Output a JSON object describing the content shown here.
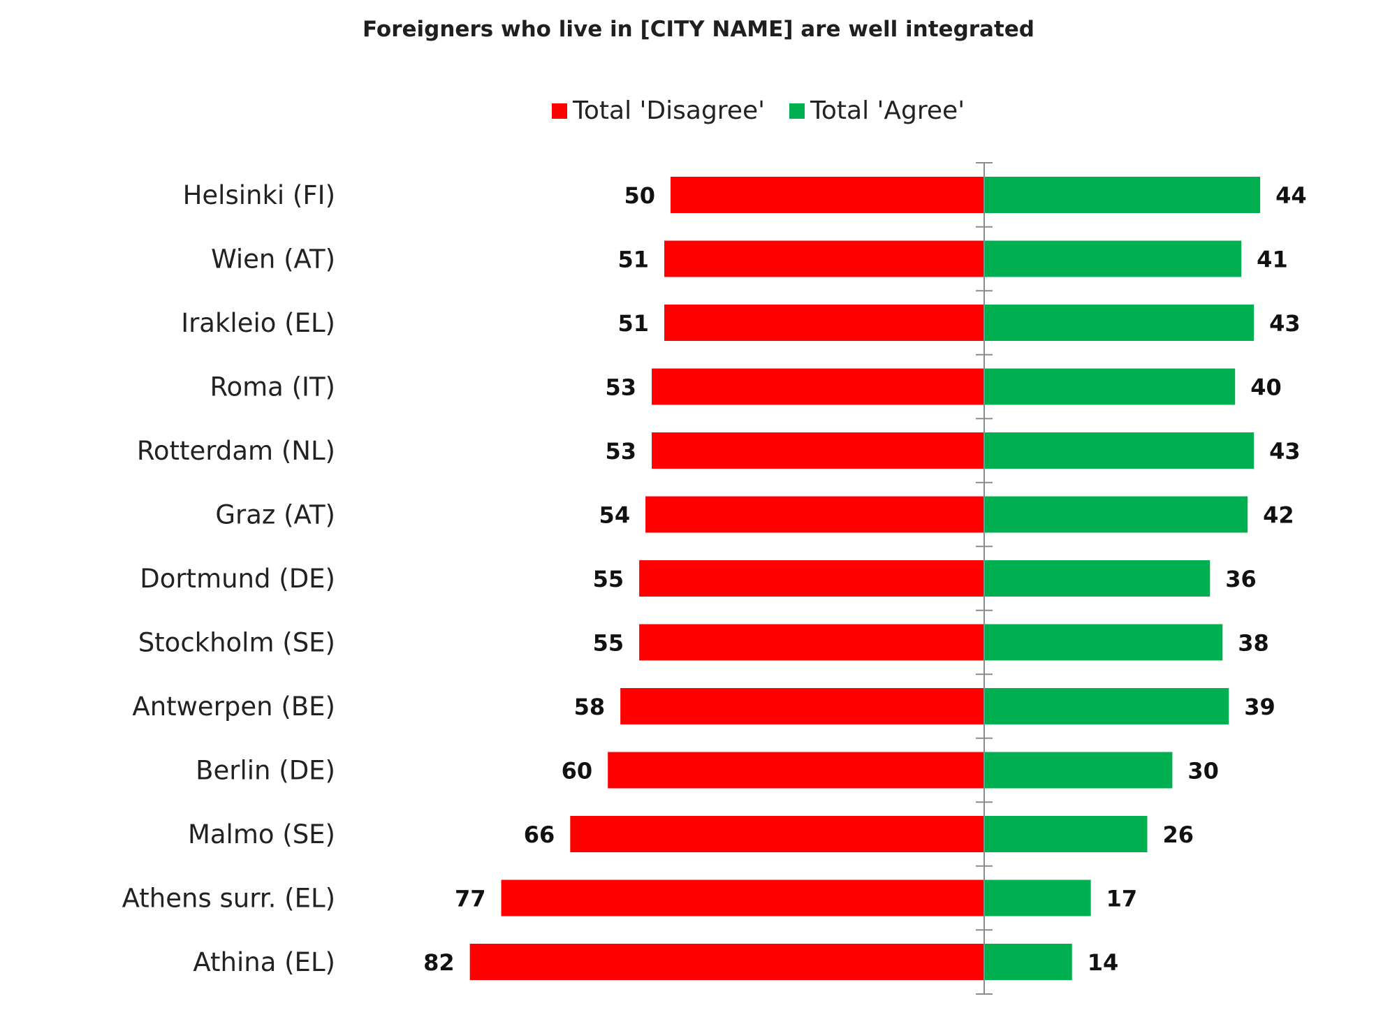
{
  "chart_data": {
    "type": "bar",
    "orientation": "horizontal-diverging",
    "title": "Foreigners who live in [CITY NAME] are well integrated",
    "categories": [
      "Helsinki (FI)",
      "Wien (AT)",
      "Irakleio (EL)",
      "Roma (IT)",
      "Rotterdam (NL)",
      "Graz (AT)",
      "Dortmund (DE)",
      "Stockholm (SE)",
      "Antwerpen (BE)",
      "Berlin (DE)",
      "Malmo (SE)",
      "Athens surr. (EL)",
      "Athina (EL)"
    ],
    "series": [
      {
        "name": "Total 'Disagree'",
        "color": "#ff0000",
        "side": "left",
        "values": [
          50,
          51,
          51,
          53,
          53,
          54,
          55,
          55,
          58,
          60,
          66,
          77,
          82
        ]
      },
      {
        "name": "Total 'Agree'",
        "color": "#00b050",
        "side": "right",
        "values": [
          44,
          41,
          43,
          40,
          43,
          42,
          36,
          38,
          39,
          30,
          26,
          17,
          14
        ]
      }
    ],
    "legend_position": "top-center",
    "grid": false
  }
}
